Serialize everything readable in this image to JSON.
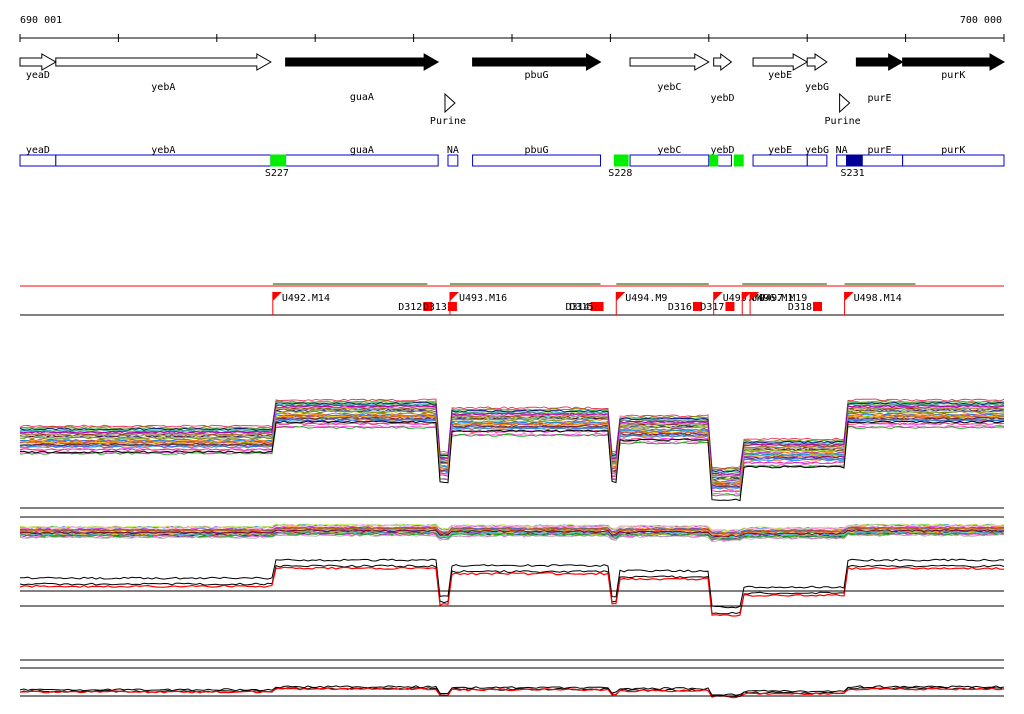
{
  "ruler": {
    "start_label": "690 001",
    "end_label": "700 000",
    "start_bp": 690001,
    "end_bp": 700000
  },
  "genes": [
    {
      "name": "yeaD",
      "start": 690001,
      "end": 690365,
      "strand": "+",
      "filled": false
    },
    {
      "name": "yebA",
      "start": 690365,
      "end": 692550,
      "strand": "+",
      "filled": false
    },
    {
      "name": "guaA",
      "start": 692700,
      "end": 694250,
      "strand": "+",
      "filled": true
    },
    {
      "name": "pbuG",
      "start": 694600,
      "end": 695900,
      "strand": "+",
      "filled": true
    },
    {
      "name": "yebC",
      "start": 696200,
      "end": 697000,
      "strand": "+",
      "filled": false
    },
    {
      "name": "yebD",
      "start": 697050,
      "end": 697230,
      "strand": "+",
      "filled": false
    },
    {
      "name": "yebE",
      "start": 697450,
      "end": 698000,
      "strand": "+",
      "filled": false
    },
    {
      "name": "yebG",
      "start": 698000,
      "end": 698200,
      "strand": "+",
      "filled": false
    },
    {
      "name": "purE",
      "start": 698500,
      "end": 698970,
      "strand": "+",
      "filled": true
    },
    {
      "name": "purK",
      "start": 698970,
      "end": 700000,
      "strand": "+",
      "filled": true
    }
  ],
  "riboswitches": [
    {
      "name": "Purine",
      "pos": 694350
    },
    {
      "name": "Purine",
      "pos": 698360
    }
  ],
  "operon_boxes": [
    {
      "name": "yeaD",
      "start": 690001,
      "end": 690365
    },
    {
      "name": "yebA",
      "start": 690365,
      "end": 692550
    },
    {
      "name": "guaA",
      "start": 692700,
      "end": 694250
    },
    {
      "name": "NA",
      "start": 694350,
      "end": 694450
    },
    {
      "name": "pbuG",
      "start": 694600,
      "end": 695900
    },
    {
      "name": "yebC",
      "start": 696200,
      "end": 697000
    },
    {
      "name": "yebD",
      "start": 697050,
      "end": 697230
    },
    {
      "name": "yebG",
      "start": 698000,
      "end": 698200
    },
    {
      "name": "yebE",
      "start": 697450,
      "end": 698000
    },
    {
      "name": "NA",
      "start": 698300,
      "end": 698400
    },
    {
      "name": "purE",
      "start": 698500,
      "end": 698970
    },
    {
      "name": "purK",
      "start": 698970,
      "end": 700000
    }
  ],
  "promoters": [
    {
      "name": "S227",
      "start": 692550,
      "end": 692700,
      "color": "#00ee00"
    },
    {
      "name": "S228",
      "start": 696040,
      "end": 696180,
      "color": "#00ee00"
    },
    {
      "name": "",
      "start": 697010,
      "end": 697080,
      "color": "#00ee00"
    },
    {
      "name": "",
      "start": 697260,
      "end": 697350,
      "color": "#00ee00"
    },
    {
      "name": "S231",
      "start": 698400,
      "end": 698560,
      "color": "#000099"
    }
  ],
  "up_shifts": [
    {
      "name": "U492.M14",
      "pos": 692570
    },
    {
      "name": "U493.M16",
      "pos": 694370
    },
    {
      "name": "U494.M9",
      "pos": 696060
    },
    {
      "name": "U495.M9",
      "pos": 697050
    },
    {
      "name": "U496.M1",
      "pos": 697340
    },
    {
      "name": "U497.M19",
      "pos": 697420
    },
    {
      "name": "U498.M14",
      "pos": 698380
    }
  ],
  "down_shifts": [
    {
      "name": "D312",
      "pos": 694140
    },
    {
      "name": "D313",
      "pos": 694390
    },
    {
      "name": "D314",
      "pos": 695840
    },
    {
      "name": "D315",
      "pos": 695880
    },
    {
      "name": "D316",
      "pos": 696880
    },
    {
      "name": "D317",
      "pos": 697210
    },
    {
      "name": "D318",
      "pos": 698100
    }
  ],
  "colors": {
    "gene_fill": "#000000",
    "gene_outline": "#000000",
    "operon_outline": "#0000cc",
    "shift_marker": "#ff0000",
    "highlight_trace": "#ff0000",
    "baseline": "#000000"
  }
}
